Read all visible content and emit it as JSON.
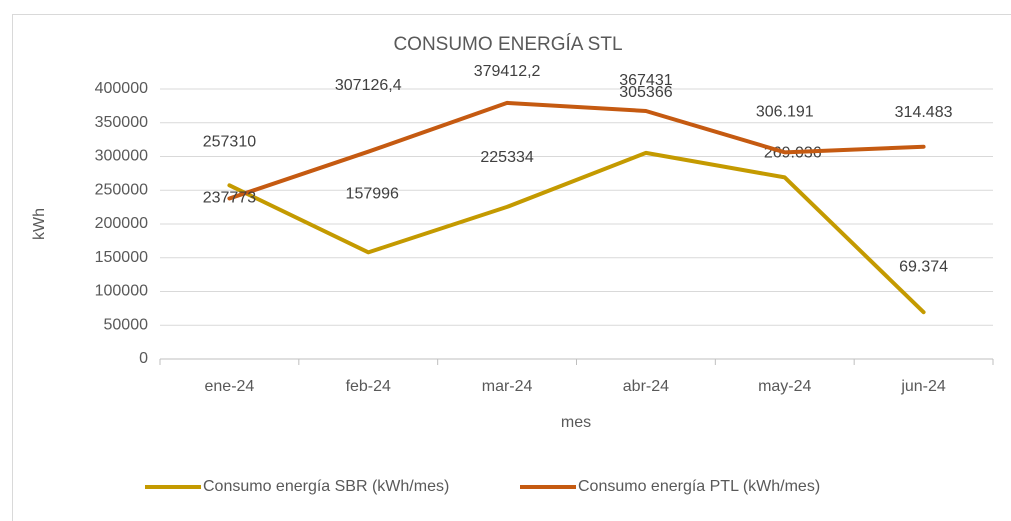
{
  "chart_data": {
    "type": "line",
    "title": "CONSUMO ENERGÍA STL",
    "x_label": "mes",
    "y_label": "kWh",
    "categories": [
      "ene-24",
      "feb-24",
      "mar-24",
      "abr-24",
      "may-24",
      "jun-24"
    ],
    "series": [
      {
        "name": "Consumo energía SBR (kWh/mes)",
        "color": "#c49a00",
        "values": [
          257310,
          157996,
          225334,
          305366,
          269036,
          69374
        ],
        "value_labels": [
          "257310",
          "157996",
          "225334",
          "305366",
          "269.036",
          "69.374"
        ]
      },
      {
        "name": "Consumo energía PTL (kWh/mes)",
        "color": "#c55a11",
        "values": [
          237773,
          307126.4,
          379412.2,
          367431,
          306191,
          314483
        ],
        "value_labels": [
          "237773",
          "307126,4",
          "379412,2",
          "367431",
          "306.191",
          "314.483"
        ]
      }
    ],
    "ylim": [
      0,
      400000
    ],
    "yticks": [
      0,
      50000,
      100000,
      150000,
      200000,
      250000,
      300000,
      350000,
      400000
    ],
    "grid": true,
    "legend": "bottom"
  }
}
